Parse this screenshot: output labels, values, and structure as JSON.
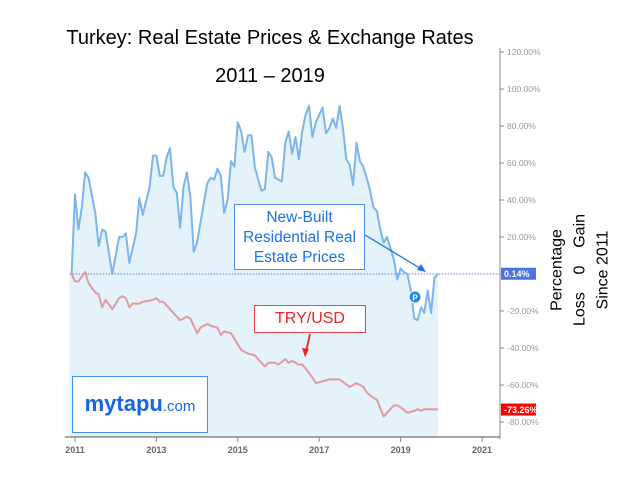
{
  "title": "Turkey: Real Estate Prices & Exchange Rates",
  "subtitle": "2011 – 2019",
  "side_label": [
    "Percentage",
    "Loss    0    Gain",
    "Since 2011"
  ],
  "logo": {
    "main": "mytapu",
    "suffix": ".com"
  },
  "annotations": {
    "real_estate": "New-Built Residential Real Estate Prices",
    "try_usd": "TRY/USD",
    "marker": "P"
  },
  "colors": {
    "real_estate": "#7cb5ec",
    "area": "#e3f2fb",
    "try_usd": "#e39aa0",
    "last_blue": "#4a74e0",
    "last_red": "#ff0000",
    "annotation_blue": "#1a73e8",
    "annotation_red": "#ee2222"
  },
  "chart_data": {
    "type": "area",
    "title": "Turkey: Real Estate Prices & Exchange Rates",
    "subtitle": "2011 – 2019",
    "ylabel": "Percentage Loss 0 Gain Since 2011",
    "xlim": [
      "2010-11",
      "2021-04"
    ],
    "ylim": [
      -85,
      122
    ],
    "x_ticks": [
      "2011",
      "2013",
      "2015",
      "2017",
      "2019",
      "2021"
    ],
    "y_ticks": [
      "120.00%",
      "100.00%",
      "80.00%",
      "60.00%",
      "40.00%",
      "20.00%",
      "-20.00%",
      "-40.00%",
      "-60.00%",
      "-80.00%"
    ],
    "y_tick_values": [
      120,
      100,
      80,
      60,
      40,
      20,
      -20,
      -40,
      -60,
      -80
    ],
    "grid": false,
    "series": [
      {
        "name": "New-Built Residential Real Estate Prices",
        "last_label": "0.14%",
        "points": [
          [
            "2010-12",
            0
          ],
          [
            "2011-01",
            43
          ],
          [
            "2011-02",
            24
          ],
          [
            "2011-03",
            36
          ],
          [
            "2011-04",
            55
          ],
          [
            "2011-05",
            52
          ],
          [
            "2011-07",
            33
          ],
          [
            "2011-08",
            15
          ],
          [
            "2011-09",
            24
          ],
          [
            "2011-10",
            23
          ],
          [
            "2011-12",
            0
          ],
          [
            "2012-02",
            20
          ],
          [
            "2012-03",
            20
          ],
          [
            "2012-04",
            22
          ],
          [
            "2012-05",
            6
          ],
          [
            "2012-07",
            22
          ],
          [
            "2012-08",
            41
          ],
          [
            "2012-09",
            32
          ],
          [
            "2012-11",
            47
          ],
          [
            "2012-12",
            64
          ],
          [
            "2013-01",
            64
          ],
          [
            "2013-02",
            53
          ],
          [
            "2013-03",
            53
          ],
          [
            "2013-04",
            63
          ],
          [
            "2013-05",
            68
          ],
          [
            "2013-06",
            47
          ],
          [
            "2013-07",
            44
          ],
          [
            "2013-08",
            25
          ],
          [
            "2013-09",
            47
          ],
          [
            "2013-10",
            55
          ],
          [
            "2013-11",
            42
          ],
          [
            "2013-12",
            12
          ],
          [
            "2014-01",
            17
          ],
          [
            "2014-02",
            28
          ],
          [
            "2014-04",
            49
          ],
          [
            "2014-05",
            52
          ],
          [
            "2014-06",
            51
          ],
          [
            "2014-07",
            57
          ],
          [
            "2014-08",
            53
          ],
          [
            "2014-09",
            33
          ],
          [
            "2014-10",
            40
          ],
          [
            "2014-11",
            61
          ],
          [
            "2014-12",
            58
          ],
          [
            "2015-01",
            82
          ],
          [
            "2015-02",
            77
          ],
          [
            "2015-03",
            66
          ],
          [
            "2015-04",
            75
          ],
          [
            "2015-05",
            75
          ],
          [
            "2015-06",
            58
          ],
          [
            "2015-07",
            51
          ],
          [
            "2015-08",
            45
          ],
          [
            "2015-09",
            46
          ],
          [
            "2015-10",
            66
          ],
          [
            "2015-11",
            63
          ],
          [
            "2015-12",
            52
          ],
          [
            "2016-01",
            51
          ],
          [
            "2016-02",
            50
          ],
          [
            "2016-03",
            71
          ],
          [
            "2016-04",
            77
          ],
          [
            "2016-05",
            65
          ],
          [
            "2016-06",
            74
          ],
          [
            "2016-07",
            62
          ],
          [
            "2016-08",
            77
          ],
          [
            "2016-09",
            86
          ],
          [
            "2016-10",
            91
          ],
          [
            "2016-11",
            74
          ],
          [
            "2016-12",
            82
          ],
          [
            "2017-01",
            86
          ],
          [
            "2017-02",
            90
          ],
          [
            "2017-03",
            76
          ],
          [
            "2017-04",
            79
          ],
          [
            "2017-05",
            84
          ],
          [
            "2017-06",
            79
          ],
          [
            "2017-07",
            91
          ],
          [
            "2017-08",
            79
          ],
          [
            "2017-09",
            62
          ],
          [
            "2017-10",
            59
          ],
          [
            "2017-11",
            48
          ],
          [
            "2017-12",
            71
          ],
          [
            "2018-01",
            61
          ],
          [
            "2018-02",
            58
          ],
          [
            "2018-03",
            52
          ],
          [
            "2018-04",
            45
          ],
          [
            "2018-05",
            36
          ],
          [
            "2018-06",
            34
          ],
          [
            "2018-07",
            24
          ],
          [
            "2018-08",
            17
          ],
          [
            "2018-09",
            20
          ],
          [
            "2018-10",
            14
          ],
          [
            "2018-11",
            8
          ],
          [
            "2018-12",
            -3
          ],
          [
            "2019-01",
            3
          ],
          [
            "2019-02",
            1
          ],
          [
            "2019-03",
            0
          ],
          [
            "2019-04",
            -9
          ],
          [
            "2019-05",
            -24
          ],
          [
            "2019-06",
            -25
          ],
          [
            "2019-07",
            -18
          ],
          [
            "2019-08",
            -21
          ],
          [
            "2019-09",
            -9
          ],
          [
            "2019-10",
            -21
          ],
          [
            "2019-11",
            -2
          ],
          [
            "2019-12",
            0.14
          ]
        ]
      },
      {
        "name": "TRY/USD",
        "last_label": "-73.26%",
        "points": [
          [
            "2010-12",
            0
          ],
          [
            "2011-01",
            -4
          ],
          [
            "2011-02",
            -4
          ],
          [
            "2011-04",
            1
          ],
          [
            "2011-05",
            -5
          ],
          [
            "2011-07",
            -10
          ],
          [
            "2011-08",
            -11
          ],
          [
            "2011-09",
            -18
          ],
          [
            "2011-10",
            -14
          ],
          [
            "2011-12",
            -19
          ],
          [
            "2012-02",
            -13
          ],
          [
            "2012-03",
            -12
          ],
          [
            "2012-04",
            -13
          ],
          [
            "2012-05",
            -18
          ],
          [
            "2012-06",
            -16
          ],
          [
            "2012-08",
            -16
          ],
          [
            "2012-09",
            -15
          ],
          [
            "2012-12",
            -14
          ],
          [
            "2013-01",
            -13
          ],
          [
            "2013-02",
            -15
          ],
          [
            "2013-03",
            -15
          ],
          [
            "2013-05",
            -19
          ],
          [
            "2013-06",
            -21
          ],
          [
            "2013-08",
            -25
          ],
          [
            "2013-10",
            -23
          ],
          [
            "2013-11",
            -24
          ],
          [
            "2014-01",
            -32
          ],
          [
            "2014-02",
            -29
          ],
          [
            "2014-04",
            -27
          ],
          [
            "2014-05",
            -28
          ],
          [
            "2014-07",
            -29
          ],
          [
            "2014-08",
            -33
          ],
          [
            "2014-09",
            -31
          ],
          [
            "2014-11",
            -32
          ],
          [
            "2015-01",
            -38
          ],
          [
            "2015-02",
            -41
          ],
          [
            "2015-04",
            -43
          ],
          [
            "2015-06",
            -44
          ],
          [
            "2015-09",
            -50
          ],
          [
            "2015-10",
            -48
          ],
          [
            "2015-12",
            -48
          ],
          [
            "2016-01",
            -49
          ],
          [
            "2016-03",
            -46
          ],
          [
            "2016-04",
            -48
          ],
          [
            "2016-05",
            -47
          ],
          [
            "2016-07",
            -49
          ],
          [
            "2016-08",
            -49
          ],
          [
            "2016-09",
            -51
          ],
          [
            "2016-11",
            -56
          ],
          [
            "2016-12",
            -59
          ],
          [
            "2017-02",
            -58
          ],
          [
            "2017-04",
            -57
          ],
          [
            "2017-07",
            -57
          ],
          [
            "2017-10",
            -61
          ],
          [
            "2017-12",
            -59
          ],
          [
            "2018-02",
            -61
          ],
          [
            "2018-03",
            -64
          ],
          [
            "2018-05",
            -67
          ],
          [
            "2018-06",
            -68
          ],
          [
            "2018-08",
            -77
          ],
          [
            "2018-09",
            -75
          ],
          [
            "2018-11",
            -71
          ],
          [
            "2018-12",
            -71
          ],
          [
            "2019-01",
            -72
          ],
          [
            "2019-03",
            -75
          ],
          [
            "2019-05",
            -74
          ],
          [
            "2019-06",
            -73
          ],
          [
            "2019-07",
            -74
          ],
          [
            "2019-08",
            -73
          ],
          [
            "2019-12",
            -73.26
          ]
        ]
      }
    ]
  }
}
